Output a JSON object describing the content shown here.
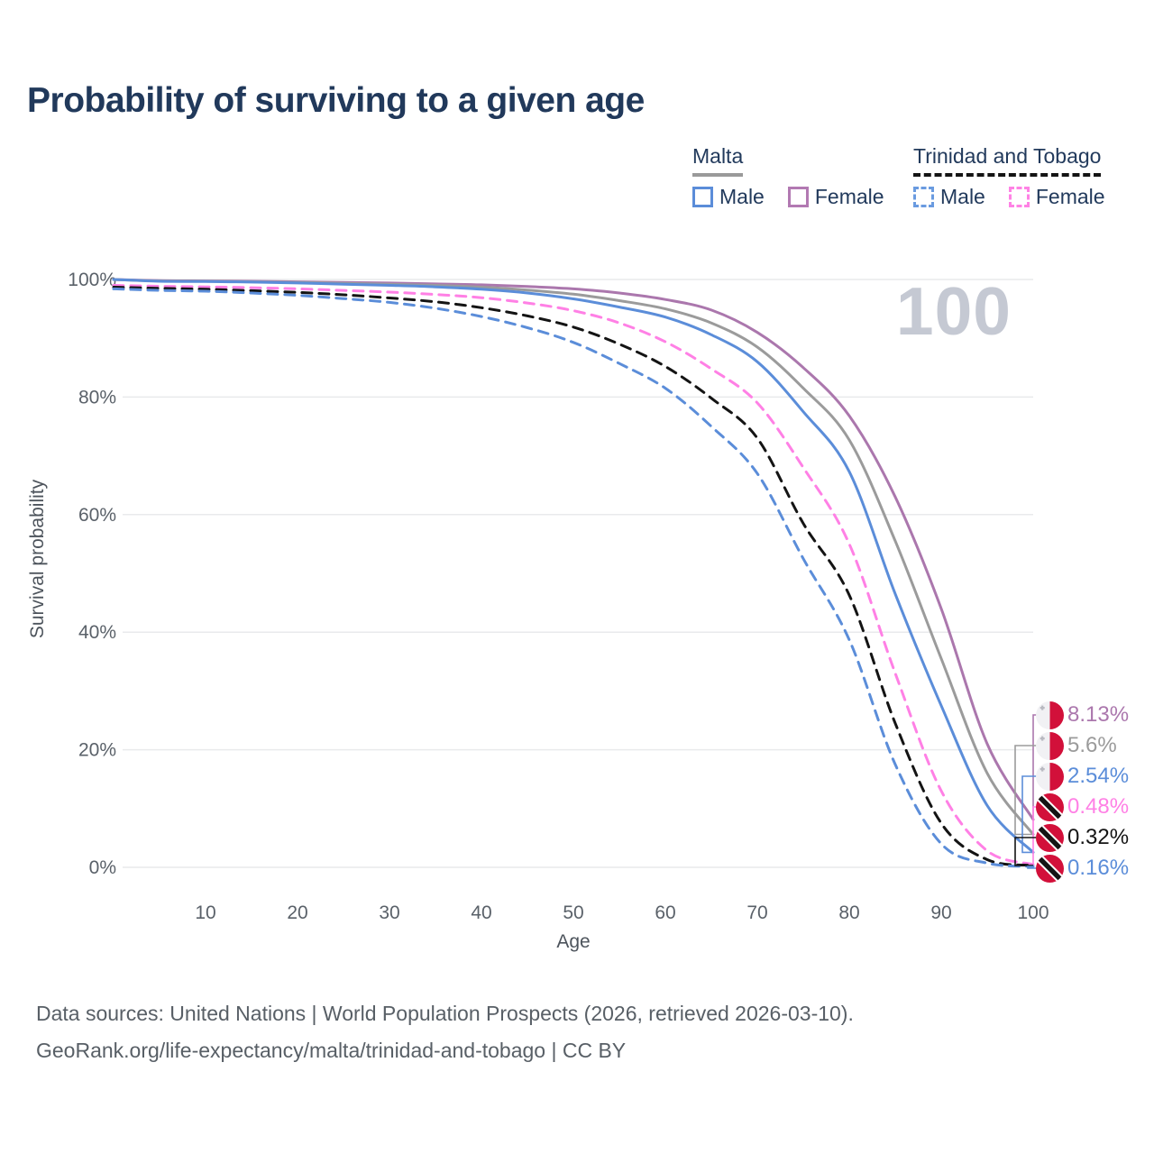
{
  "title": "Probability of surviving to a given age",
  "watermark": "100",
  "legend": {
    "groups": [
      {
        "label": "Malta",
        "line_style": "solid",
        "underline_color": "#9a9a9a",
        "items": [
          {
            "label": "Male",
            "color": "#5b8dd9",
            "dashed": false
          },
          {
            "label": "Female",
            "color": "#b279b2",
            "dashed": false
          }
        ]
      },
      {
        "label": "Trinidad and Tobago",
        "line_style": "dashed",
        "underline_color": "#141414",
        "items": [
          {
            "label": "Male",
            "color": "#6a9be0",
            "dashed": true
          },
          {
            "label": "Female",
            "color": "#ff82e5",
            "dashed": true
          }
        ]
      }
    ]
  },
  "chart_data": {
    "type": "line",
    "title": "Probability of surviving to a given age",
    "xlabel": "Age",
    "ylabel": "Survival probability",
    "xlim": [
      0,
      100
    ],
    "ylim": [
      0,
      100
    ],
    "grid": "horizontal",
    "xticks": [
      10,
      20,
      30,
      40,
      50,
      60,
      70,
      80,
      90,
      100
    ],
    "yticks": [
      0,
      20,
      40,
      60,
      80,
      100
    ],
    "ytick_labels": [
      "0%",
      "20%",
      "40%",
      "60%",
      "80%",
      "100%"
    ],
    "x": [
      0,
      5,
      10,
      15,
      20,
      25,
      30,
      35,
      40,
      45,
      50,
      55,
      60,
      65,
      70,
      75,
      80,
      85,
      90,
      95,
      100
    ],
    "series": [
      {
        "id": "malta-female",
        "name": "Female",
        "country": "malta",
        "color": "#ab77ad",
        "dashed": false,
        "end_label": "8.13%",
        "values": [
          100,
          99.8,
          99.75,
          99.7,
          99.6,
          99.5,
          99.4,
          99.25,
          99.1,
          98.8,
          98.4,
          97.7,
          96.6,
          94.8,
          91.0,
          85.0,
          76.8,
          63.0,
          44.0,
          21.0,
          8.13
        ]
      },
      {
        "id": "malta-total",
        "name": "Malta",
        "country": "malta",
        "color": "#9b9b9b",
        "dashed": false,
        "end_label": "5.6%",
        "values": [
          100,
          99.75,
          99.7,
          99.6,
          99.5,
          99.35,
          99.2,
          99.0,
          98.7,
          98.2,
          97.5,
          96.4,
          95.0,
          92.6,
          88.5,
          81.5,
          72.7,
          55.5,
          35.5,
          16.0,
          5.6
        ]
      },
      {
        "id": "malta-male",
        "name": "Male",
        "country": "malta",
        "color": "#5b8dd9",
        "dashed": false,
        "end_label": "2.54%",
        "values": [
          100,
          99.7,
          99.65,
          99.55,
          99.4,
          99.2,
          99.0,
          98.75,
          98.35,
          97.7,
          96.7,
          95.3,
          93.6,
          90.6,
          86.0,
          77.5,
          67.3,
          46.5,
          27.5,
          10.5,
          2.54
        ]
      },
      {
        "id": "tt-female",
        "name": "Female",
        "country": "trinidad-and-tobago",
        "color": "#ff80e5",
        "dashed": true,
        "end_label": "0.48%",
        "values": [
          99.0,
          98.85,
          98.75,
          98.6,
          98.4,
          98.15,
          97.85,
          97.45,
          96.9,
          96.0,
          94.7,
          92.6,
          89.4,
          84.8,
          79.0,
          68.0,
          55.0,
          33.0,
          13.0,
          2.8,
          0.48
        ]
      },
      {
        "id": "tt-total",
        "name": "Trinidad and Tobago",
        "country": "trinidad-and-tobago",
        "color": "#141414",
        "dashed": true,
        "end_label": "0.32%",
        "values": [
          98.7,
          98.5,
          98.35,
          98.1,
          97.8,
          97.4,
          96.85,
          96.2,
          95.2,
          93.8,
          91.9,
          89.0,
          85.2,
          79.8,
          73.0,
          58.5,
          46.3,
          24.5,
          7.5,
          1.3,
          0.32
        ]
      },
      {
        "id": "tt-male",
        "name": "Male",
        "country": "trinidad-and-tobago",
        "color": "#5b8dd9",
        "dashed": true,
        "end_label": "0.16%",
        "values": [
          98.4,
          98.15,
          98.0,
          97.7,
          97.3,
          96.75,
          96.1,
          95.1,
          93.7,
          91.8,
          89.3,
          85.7,
          81.5,
          75.0,
          67.0,
          52.5,
          38.7,
          17.5,
          4.0,
          0.7,
          0.16
        ]
      }
    ]
  },
  "footer": {
    "line1": "Data sources: United Nations | World Population Prospects (2026, retrieved 2026-03-10).",
    "line2": "GeoRank.org/life-expectancy/malta/trinidad-and-tobago | CC BY"
  }
}
